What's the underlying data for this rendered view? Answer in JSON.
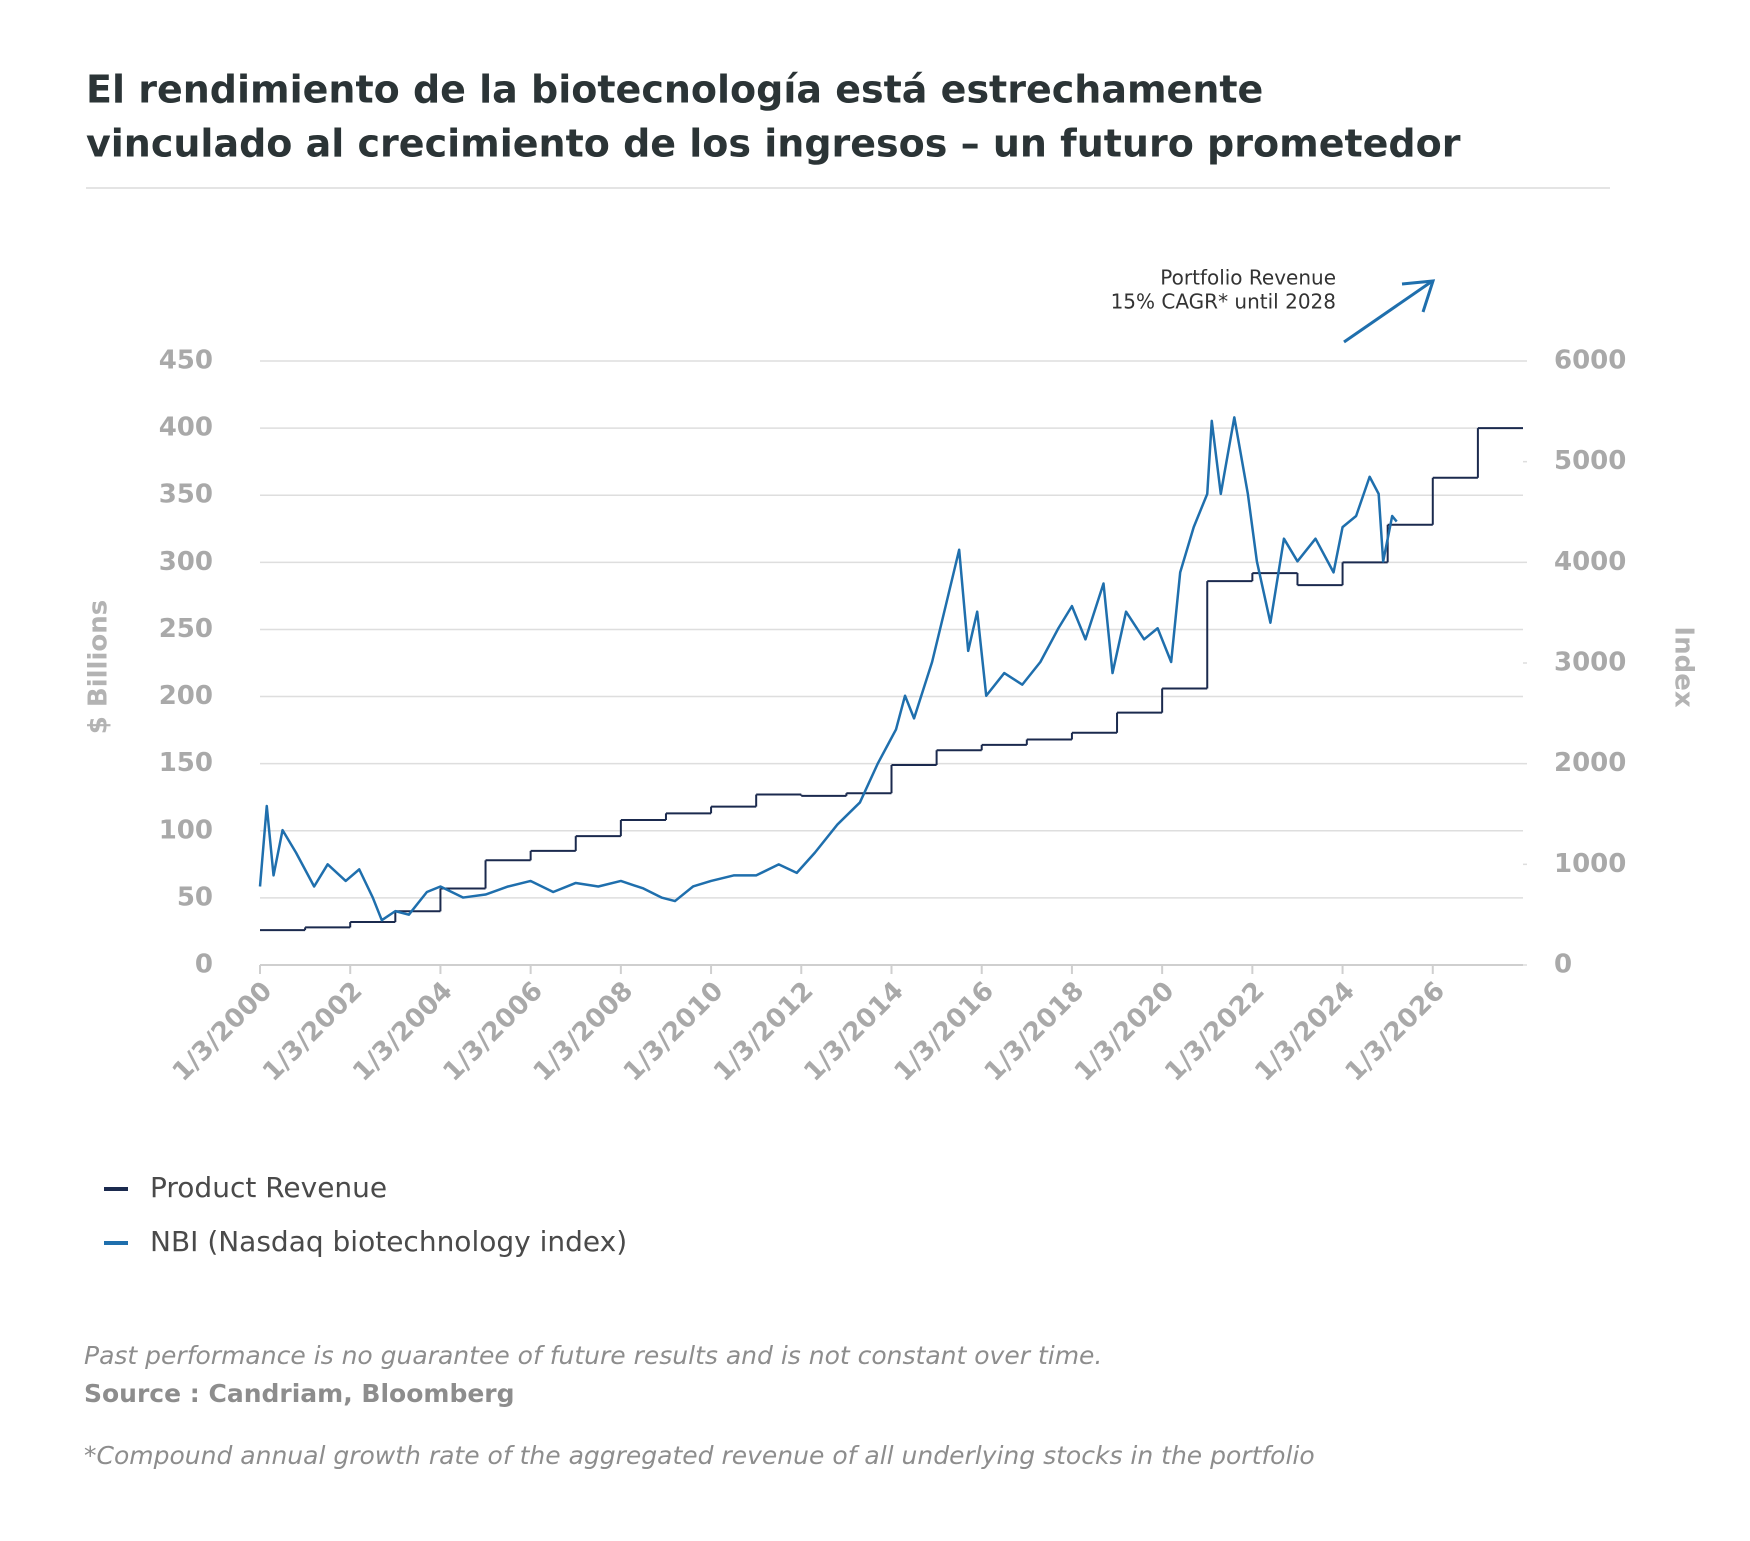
{
  "chart_data": {
    "type": "line",
    "title": [
      "El rendimiento de la biotecnología está estrechamente",
      "vinculado al crecimiento de los ingresos – un futuro prometedor"
    ],
    "y_label": "$ Billions",
    "y2_label": "Index",
    "annotation": [
      "Portfolio Revenue",
      "15% CAGR* until 2028"
    ],
    "annotation_color": "#1f6fad",
    "xlim": [
      2000,
      2028
    ],
    "xticks": [
      {
        "value": 2000,
        "label": "1/3/2000"
      },
      {
        "value": 2002,
        "label": "1/3/2002"
      },
      {
        "value": 2004,
        "label": "1/3/2004"
      },
      {
        "value": 2006,
        "label": "1/3/2006"
      },
      {
        "value": 2008,
        "label": "1/3/2008"
      },
      {
        "value": 2010,
        "label": "1/3/2010"
      },
      {
        "value": 2012,
        "label": "1/3/2012"
      },
      {
        "value": 2014,
        "label": "1/3/2014"
      },
      {
        "value": 2016,
        "label": "1/3/2016"
      },
      {
        "value": 2018,
        "label": "1/3/2018"
      },
      {
        "value": 2020,
        "label": "1/3/2020"
      },
      {
        "value": 2022,
        "label": "1/3/2022"
      },
      {
        "value": 2024,
        "label": "1/3/2024"
      },
      {
        "value": 2026,
        "label": "1/3/2026"
      }
    ],
    "ylim": [
      0,
      450
    ],
    "yticks": [
      0,
      50,
      100,
      150,
      200,
      250,
      300,
      350,
      400,
      450
    ],
    "y2lim": [
      0,
      6000
    ],
    "y2ticks": [
      0,
      1000,
      2000,
      3000,
      4000,
      5000,
      6000
    ],
    "grid": true,
    "legend": "bottom-left",
    "series": [
      {
        "name": "Product Revenue",
        "color": "#1b2a4e",
        "step": "post",
        "x": [
          2000,
          2001,
          2002,
          2003,
          2004,
          2005,
          2006,
          2007,
          2008,
          2009,
          2010,
          2011,
          2012,
          2013,
          2014,
          2015,
          2016,
          2017,
          2018,
          2019,
          2020,
          2021,
          2022,
          2023,
          2024,
          2025,
          2026,
          2027
        ],
        "values": [
          26,
          28,
          32,
          40,
          57,
          78,
          85,
          96,
          108,
          113,
          118,
          127,
          126,
          128,
          149,
          160,
          164,
          168,
          173,
          188,
          206,
          286,
          292,
          283,
          300,
          328,
          363,
          400
        ]
      },
      {
        "name": "NBI (Nasdaq biotechnology index)",
        "color": "#1f6fad",
        "axis": "y2",
        "x": [
          2000.0,
          2000.15,
          2000.3,
          2000.5,
          2000.8,
          2001.2,
          2001.5,
          2001.9,
          2002.2,
          2002.5,
          2002.7,
          2003.0,
          2003.3,
          2003.7,
          2004.0,
          2004.5,
          2005.0,
          2005.5,
          2006.0,
          2006.5,
          2007.0,
          2007.5,
          2008.0,
          2008.5,
          2008.9,
          2009.2,
          2009.6,
          2010.0,
          2010.5,
          2011.0,
          2011.5,
          2011.9,
          2012.3,
          2012.8,
          2013.3,
          2013.7,
          2014.1,
          2014.3,
          2014.5,
          2014.9,
          2015.2,
          2015.5,
          2015.7,
          2015.9,
          2016.1,
          2016.5,
          2016.9,
          2017.3,
          2017.7,
          2018.0,
          2018.3,
          2018.7,
          2018.9,
          2019.2,
          2019.6,
          2019.9,
          2020.2,
          2020.4,
          2020.7,
          2021.0,
          2021.1,
          2021.3,
          2021.6,
          2021.9,
          2022.1,
          2022.4,
          2022.7,
          2023.0,
          2023.4,
          2023.8,
          2024.0,
          2024.3,
          2024.6,
          2024.8,
          2024.9,
          2025.1,
          2025.2
        ],
        "values": [
          780,
          1580,
          890,
          1340,
          1115,
          780,
          1000,
          835,
          950,
          670,
          445,
          535,
          500,
          725,
          780,
          670,
          700,
          780,
          835,
          725,
          815,
          780,
          835,
          760,
          670,
          635,
          780,
          835,
          890,
          890,
          1000,
          915,
          1115,
          1395,
          1615,
          2005,
          2340,
          2675,
          2450,
          3010,
          3565,
          4125,
          3120,
          3510,
          2675,
          2900,
          2785,
          3010,
          3345,
          3565,
          3235,
          3790,
          2900,
          3510,
          3235,
          3345,
          3010,
          3900,
          4350,
          4680,
          5405,
          4680,
          5440,
          4680,
          4010,
          3400,
          4235,
          4010,
          4235,
          3900,
          4350,
          4460,
          4850,
          4680,
          4010,
          4460,
          4405
        ]
      }
    ]
  },
  "notes": {
    "disclaimer": "Past performance is no guarantee of future results and is not constant over time.",
    "source": "Source : Candriam, Bloomberg",
    "footnote": "*Compound annual growth rate of the aggregated revenue of all underlying stocks in the portfolio"
  }
}
